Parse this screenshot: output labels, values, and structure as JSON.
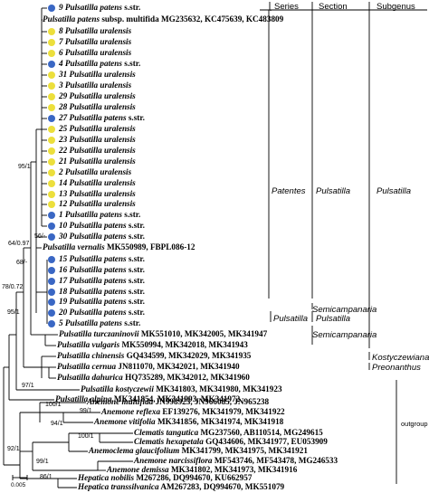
{
  "colors": {
    "patens": "#3a67c4",
    "uralensis": "#ecdf3c"
  },
  "headers": {
    "series": "Series",
    "section": "Section",
    "subgenus": "Subgenus"
  },
  "scale_label": "0.005",
  "taxa": [
    {
      "name": "9 Pulsatilla patens",
      "suffix": " s.str.",
      "dot": "patens"
    },
    {
      "name": "Pulsatilla patens",
      "suffix": " subsp. multifida MG235632, KC475639, KC483809",
      "dot": ""
    },
    {
      "name": "8 Pulsatilla uralensis",
      "suffix": "",
      "dot": "uralensis"
    },
    {
      "name": "7 Pulsatilla uralensis",
      "suffix": "",
      "dot": "uralensis"
    },
    {
      "name": "6 Pulsatilla uralensis",
      "suffix": "",
      "dot": "uralensis"
    },
    {
      "name": "4 Pulsatilla patens",
      "suffix": " s.str.",
      "dot": "patens"
    },
    {
      "name": "31 Pulsatilla uralensis",
      "suffix": "",
      "dot": "uralensis"
    },
    {
      "name": "3 Pulsatilla uralensis",
      "suffix": "",
      "dot": "uralensis"
    },
    {
      "name": "29 Pulsatilla uralensis",
      "suffix": "",
      "dot": "uralensis"
    },
    {
      "name": "28 Pulsatilla uralensis",
      "suffix": "",
      "dot": "uralensis"
    },
    {
      "name": "27 Pulsatilla patens",
      "suffix": " s.str.",
      "dot": "patens"
    },
    {
      "name": "25 Pulsatilla uralensis",
      "suffix": "",
      "dot": "uralensis"
    },
    {
      "name": "23 Pulsatilla uralensis",
      "suffix": "",
      "dot": "uralensis"
    },
    {
      "name": "22 Pulsatilla uralensis",
      "suffix": "",
      "dot": "uralensis"
    },
    {
      "name": "21 Pulsatilla uralensis",
      "suffix": "",
      "dot": "uralensis"
    },
    {
      "name": "2 Pulsatilla uralensis",
      "suffix": "",
      "dot": "uralensis"
    },
    {
      "name": "14 Pulsatilla uralensis",
      "suffix": "",
      "dot": "uralensis"
    },
    {
      "name": "13 Pulsatilla uralensis",
      "suffix": "",
      "dot": "uralensis"
    },
    {
      "name": "12 Pulsatilla uralensis",
      "suffix": "",
      "dot": "uralensis"
    },
    {
      "name": "1 Pulsatilla patens",
      "suffix": " s.str.",
      "dot": "patens"
    },
    {
      "name": "10 Pulsatilla patens",
      "suffix": " s.str.",
      "dot": "patens"
    },
    {
      "name": "30 Pulsatilla patens",
      "suffix": " s.str.",
      "dot": "patens"
    },
    {
      "name": "Pulsatilla vernalis",
      "suffix": " MK550989, FBPL086-12",
      "dot": ""
    },
    {
      "name": "15 Pulsatilla patens",
      "suffix": " s.str.",
      "dot": "patens"
    },
    {
      "name": "16 Pulsatilla patens",
      "suffix": " s.str.",
      "dot": "patens"
    },
    {
      "name": "17 Pulsatilla patens",
      "suffix": " s.str.",
      "dot": "patens"
    },
    {
      "name": "18 Pulsatilla patens",
      "suffix": " s.str.",
      "dot": "patens"
    },
    {
      "name": "19 Pulsatilla patens",
      "suffix": " s.str.",
      "dot": "patens"
    },
    {
      "name": "20 Pulsatilla patens",
      "suffix": " s.str.",
      "dot": "patens"
    },
    {
      "name": "5 Pulsatilla patens",
      "suffix": " s.str.",
      "dot": "patens"
    },
    {
      "name": "Pulsatilla turczaninovii",
      "suffix": " MK551010, MK342005, MK341947",
      "dot": ""
    },
    {
      "name": "Pulsatilla vulgaris",
      "suffix": " MK550994, MK342018, MK341943",
      "dot": ""
    },
    {
      "name": "Pulsatilla chinensis",
      "suffix": " GQ434599, MK342029, MK341935",
      "dot": ""
    },
    {
      "name": "Pulsatilla cernua",
      "suffix": " JN811070, MK342021, MK341940",
      "dot": ""
    },
    {
      "name": "Pulsatilla dahurica",
      "suffix": " HQ735289, MK342012, MK341960",
      "dot": ""
    },
    {
      "name": "Pulsatilla kostyczewii",
      "suffix": " MK341803, MK341980, MK341923",
      "dot": ""
    },
    {
      "name": "Pulsatilla alpina",
      "suffix": " MK341854, MK341993, MK341972",
      "dot": ""
    },
    {
      "name": "Anemone multifida",
      "suffix": " JN998923, JN966085, JN965238",
      "dot": ""
    },
    {
      "name": "Anemone reflexa",
      "suffix": " EF139276, MK341979, MK341922",
      "dot": ""
    },
    {
      "name": "Anemone vitifolia",
      "suffix": " MK341856, MK341974, MK341918",
      "dot": ""
    },
    {
      "name": "Clematis tangutica",
      "suffix": " MG237560, AB110514, MG249615",
      "dot": ""
    },
    {
      "name": "Clematis hexapetala",
      "suffix": " GQ434606, MK341977, EU053909",
      "dot": ""
    },
    {
      "name": "Anemoclema glaucifolium",
      "suffix": " MK341799, MK341975, MK341921",
      "dot": ""
    },
    {
      "name": "Anemone narcissiflora",
      "suffix": " MF543746, MF543478, MG246533",
      "dot": ""
    },
    {
      "name": "Anemone demissa",
      "suffix": " MK341802, MK341973, MK341916",
      "dot": ""
    },
    {
      "name": "Hepatica nobilis",
      "suffix": " M267286, DQ994670, KU662957",
      "dot": ""
    },
    {
      "name": "Hepatica transsilvanica",
      "suffix": " AM267283, DQ994670, MK551079",
      "dot": ""
    }
  ],
  "supports": [
    "95/1",
    "56/-",
    "64/0.97",
    "68/-",
    "78/0.72",
    "95/1",
    "97/1",
    "100/1",
    "99/1",
    "94/1",
    "100/1",
    "92/1",
    "99/1",
    "86/1"
  ],
  "classification": {
    "series_patentes": "Patentes",
    "section_pulsatilla": "Pulsatilla",
    "subgenus_pulsatilla": "Pulsatilla",
    "section_semicampanaria_1": "Semicampanaria",
    "series_pulsatilla": "Pulsatilla",
    "section_pulsatilla_2": "Pulsatilla",
    "section_semicampanaria_2": "Semicampanaria",
    "subgenus_kostyczewianae": "Kostyczewianae",
    "subgenus_preonanthus": "Preonanthus",
    "outgroup": "outgroup"
  }
}
